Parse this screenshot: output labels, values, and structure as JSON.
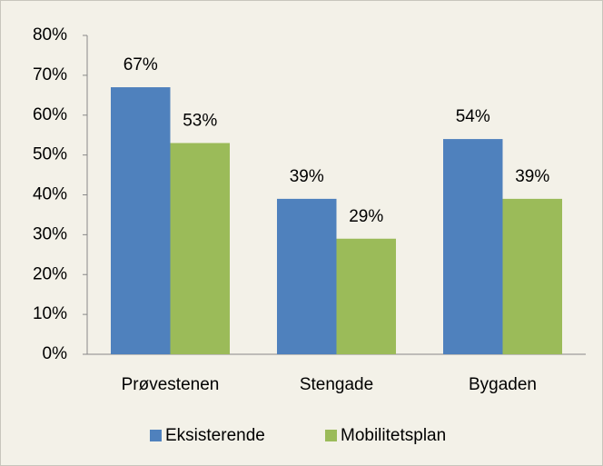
{
  "chart_data": {
    "type": "bar",
    "categories": [
      "Prøvestenen",
      "Stengade",
      "Bygaden"
    ],
    "series": [
      {
        "name": "Eksisterende",
        "color": "#4f81bd",
        "values": [
          67,
          39,
          54
        ],
        "value_labels": [
          "67%",
          "39%",
          "54%"
        ]
      },
      {
        "name": "Mobilitetsplan",
        "color": "#9bbb59",
        "values": [
          53,
          29,
          39
        ],
        "value_labels": [
          "53%",
          "29%",
          "39%"
        ]
      }
    ],
    "ylim": [
      0,
      80
    ],
    "yticks": [
      {
        "value": 0,
        "label": "0%"
      },
      {
        "value": 10,
        "label": "10%"
      },
      {
        "value": 20,
        "label": "20%"
      },
      {
        "value": 30,
        "label": "30%"
      },
      {
        "value": 40,
        "label": "40%"
      },
      {
        "value": 50,
        "label": "50%"
      },
      {
        "value": 60,
        "label": "60%"
      },
      {
        "value": 70,
        "label": "70%"
      },
      {
        "value": 80,
        "label": "80%"
      }
    ],
    "grid": false,
    "legend": "bottom"
  }
}
